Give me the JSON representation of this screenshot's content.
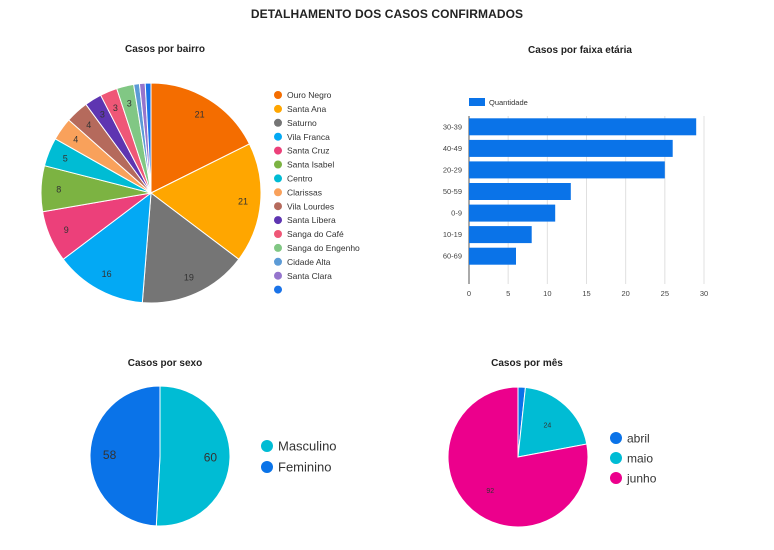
{
  "page": {
    "title": "DETALHAMENTO DOS CASOS CONFIRMADOS"
  },
  "chart_data": [
    {
      "type": "pie",
      "title": "Casos por bairro",
      "categories": [
        "Ouro Negro",
        "Santa Ana",
        "Saturno",
        "Vila Franca",
        "Santa Cruz",
        "Santa Isabel",
        "Centro",
        "Clarissas",
        "Vila Lourdes",
        "Santa Líbera",
        "Sanga do Café",
        "Sanga do Engenho",
        "Cidade Alta",
        "Santa Clara",
        ""
      ],
      "values": [
        21,
        21,
        19,
        16,
        9,
        8,
        5,
        4,
        4,
        3,
        3,
        3,
        1,
        1,
        1
      ],
      "labels": [
        "21",
        "21",
        "19",
        "16",
        "9",
        "8",
        "5",
        "4",
        "4",
        "3",
        "3",
        "3",
        "",
        "",
        ""
      ],
      "colors": [
        "#f46d00",
        "#ffa600",
        "#757575",
        "#03a9f4",
        "#ec407a",
        "#7cb342",
        "#00bcd4",
        "#f9a15b",
        "#b56a5c",
        "#5e35b1",
        "#ef5777",
        "#81c784",
        "#5c9bd6",
        "#9575cd",
        "#1a73e8"
      ],
      "legend_position": "right"
    },
    {
      "type": "bar",
      "orientation": "horizontal",
      "title": "Casos por faixa etária",
      "categories": [
        "30-39",
        "40-49",
        "20-29",
        "50-59",
        "0-9",
        "10-19",
        "60-69"
      ],
      "series": [
        {
          "name": "Quantidade",
          "values": [
            29,
            26,
            25,
            13,
            11,
            8,
            6
          ],
          "color": "#0a73e8"
        }
      ],
      "xlim": [
        0,
        30
      ],
      "xticks": [
        "0",
        "5",
        "10",
        "15",
        "20",
        "25",
        "30"
      ],
      "grid": true,
      "legend_position": "top-left"
    },
    {
      "type": "pie",
      "title": "Casos por sexo",
      "categories": [
        "Masculino",
        "Feminino"
      ],
      "values": [
        60,
        58
      ],
      "labels": [
        "60",
        "58"
      ],
      "colors": [
        "#00bcd4",
        "#0a73e8"
      ],
      "legend_position": "right"
    },
    {
      "type": "pie",
      "title": "Casos por mês",
      "categories": [
        "abril",
        "maio",
        "junho"
      ],
      "values": [
        2,
        24,
        92
      ],
      "labels": [
        "",
        "24",
        "92"
      ],
      "colors": [
        "#0a73e8",
        "#00bcd4",
        "#ec008c"
      ],
      "legend_position": "right"
    }
  ]
}
